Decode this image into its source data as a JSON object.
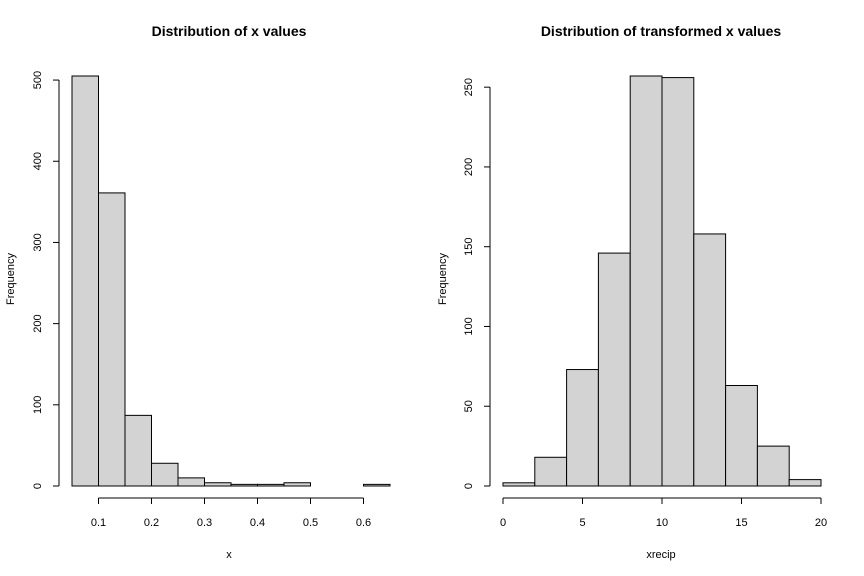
{
  "chart_data": [
    {
      "type": "bar",
      "title": "Distribution of x values",
      "xlabel": "x",
      "ylabel": "Frequency",
      "bin_edges": [
        0.05,
        0.1,
        0.15,
        0.2,
        0.25,
        0.3,
        0.35,
        0.4,
        0.45,
        0.5,
        0.55,
        0.6,
        0.65
      ],
      "values": [
        505,
        361,
        87,
        28,
        10,
        4,
        2,
        2,
        4,
        0,
        0,
        2
      ],
      "xlim": [
        0.05,
        0.65
      ],
      "ylim": [
        0,
        505
      ],
      "x_ticks": [
        0.1,
        0.2,
        0.3,
        0.4,
        0.5,
        0.6
      ],
      "x_tick_labels": [
        "0.1",
        "0.2",
        "0.3",
        "0.4",
        "0.5",
        "0.6"
      ],
      "y_ticks": [
        0,
        100,
        200,
        300,
        400,
        500
      ],
      "y_tick_labels": [
        "0",
        "100",
        "200",
        "300",
        "400",
        "500"
      ],
      "grid": false,
      "bar_color": "#d3d3d3"
    },
    {
      "type": "bar",
      "title": "Distribution of transformed x values",
      "xlabel": "xrecip",
      "ylabel": "Frequency",
      "bin_edges": [
        0,
        2,
        4,
        6,
        8,
        10,
        12,
        14,
        16,
        18,
        20
      ],
      "values": [
        2,
        18,
        73,
        146,
        257,
        256,
        158,
        63,
        25,
        4
      ],
      "xlim": [
        0,
        20
      ],
      "ylim": [
        0,
        257
      ],
      "x_ticks": [
        0,
        5,
        10,
        15,
        20
      ],
      "x_tick_labels": [
        "0",
        "5",
        "10",
        "15",
        "20"
      ],
      "y_ticks": [
        0,
        50,
        100,
        150,
        200,
        250
      ],
      "y_tick_labels": [
        "0",
        "50",
        "100",
        "150",
        "200",
        "250"
      ],
      "grid": false,
      "bar_color": "#d3d3d3"
    }
  ]
}
